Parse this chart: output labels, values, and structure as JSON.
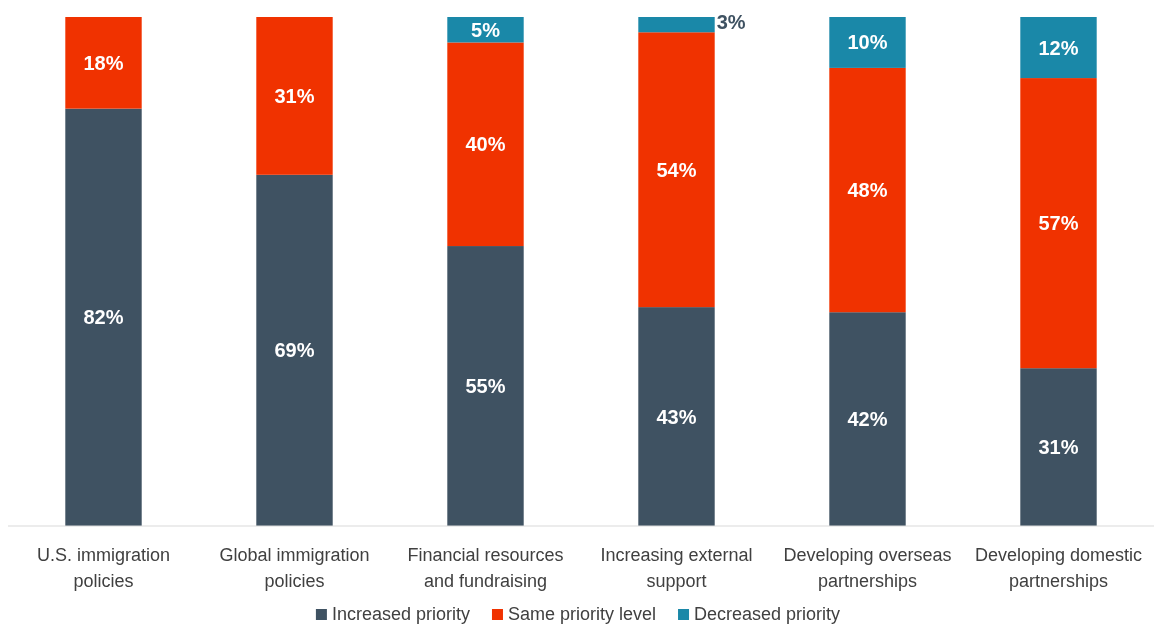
{
  "chart_data": {
    "type": "bar",
    "stacked": true,
    "legend": "bottom",
    "categories": [
      "U.S. immigration policies",
      "Global immigration policies",
      "Financial resources and fundraising",
      "Increasing external support",
      "Developing overseas partnerships",
      "Developing domestic partnerships"
    ],
    "series": [
      {
        "name": "Increased priority",
        "color": "#3f5262",
        "values": [
          82,
          69,
          55,
          43,
          42,
          31
        ],
        "value_labels": [
          "82%",
          "69%",
          "55%",
          "43%",
          "42%",
          "31%"
        ]
      },
      {
        "name": "Same priority level",
        "color": "#f03200",
        "values": [
          18,
          31,
          40,
          54,
          48,
          57
        ],
        "value_labels": [
          "18%",
          "31%",
          "40%",
          "54%",
          "48%",
          "57%"
        ]
      },
      {
        "name": "Decreased priority",
        "color": "#1a88a8",
        "values": [
          null,
          null,
          5,
          3,
          10,
          12
        ],
        "value_labels": [
          null,
          null,
          "5%",
          "3%",
          "10%",
          "12%"
        ]
      }
    ]
  }
}
